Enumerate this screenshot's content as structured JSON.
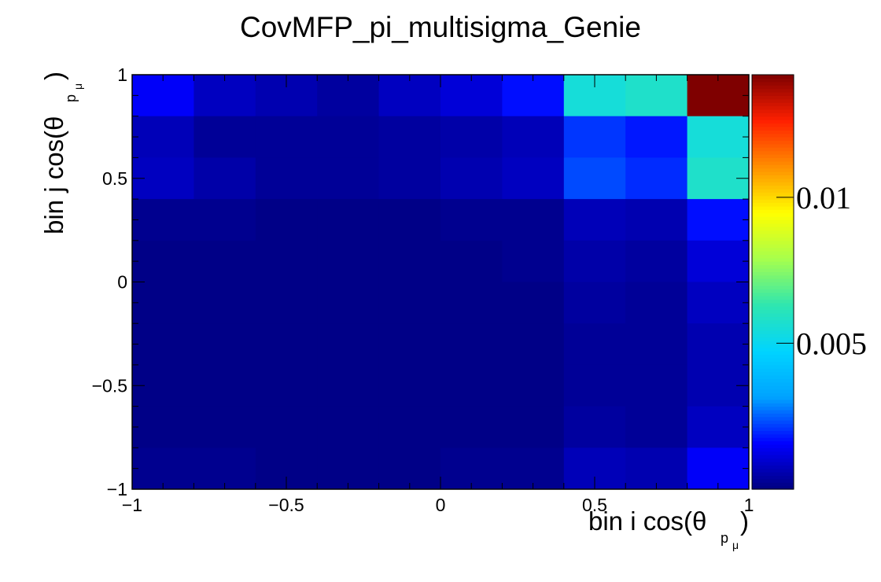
{
  "chart_data": {
    "type": "heatmap",
    "title": "CovMFP_pi_multisigma_Genie",
    "xlabel": {
      "main": "bin i cos(θ",
      "sub_p": "p",
      "sub_mu": "μ",
      "close": ")"
    },
    "ylabel": {
      "main": "bin j cos(θ",
      "sub_p": "p",
      "sub_mu": "μ",
      "close": ")"
    },
    "xlim": [
      -1,
      1
    ],
    "ylim": [
      -1,
      1
    ],
    "zlim": [
      0,
      0.0142
    ],
    "x_edges": [
      -1,
      -0.8,
      -0.6,
      -0.4,
      -0.2,
      0,
      0.2,
      0.4,
      0.6,
      0.8,
      1
    ],
    "y_edges": [
      -1,
      -0.8,
      -0.6,
      -0.4,
      -0.2,
      0,
      0.2,
      0.4,
      0.6,
      0.8,
      1
    ],
    "x_ticks": [
      {
        "v": -1,
        "label": "−1"
      },
      {
        "v": -0.5,
        "label": "−0.5"
      },
      {
        "v": 0,
        "label": "0"
      },
      {
        "v": 0.5,
        "label": "0.5"
      },
      {
        "v": 1,
        "label": "1"
      }
    ],
    "y_ticks": [
      {
        "v": -1,
        "label": "−1"
      },
      {
        "v": -0.5,
        "label": "−0.5"
      },
      {
        "v": 0,
        "label": "0"
      },
      {
        "v": 0.5,
        "label": "0.5"
      },
      {
        "v": 1,
        "label": "1"
      }
    ],
    "z_ticks": [
      {
        "v": 0.005,
        "label": "0.005"
      },
      {
        "v": 0.01,
        "label": "0.01"
      }
    ],
    "colormap": [
      "#00007f",
      "#0000ff",
      "#00a2ff",
      "#00d4ff",
      "#2ee6b0",
      "#a6ff4d",
      "#ffff00",
      "#ff9000",
      "#ff2000",
      "#7f0000"
    ],
    "values_rows_top_to_bottom": [
      [
        0.0015,
        0.0008,
        0.0006,
        0.0004,
        0.0008,
        0.0011,
        0.0017,
        0.0055,
        0.0058,
        0.0142
      ],
      [
        0.0007,
        0.0003,
        0.0003,
        0.0003,
        0.0004,
        0.0005,
        0.0007,
        0.0021,
        0.0018,
        0.0055
      ],
      [
        0.0008,
        0.0005,
        0.0003,
        0.0003,
        0.0004,
        0.0006,
        0.0008,
        0.0023,
        0.002,
        0.0058
      ],
      [
        0.0002,
        0.0002,
        0.0001,
        0.0001,
        0.0001,
        0.0002,
        0.0002,
        0.0007,
        0.0006,
        0.0017
      ],
      [
        0.0001,
        0.0001,
        0.0001,
        0.0001,
        0.0001,
        0.0001,
        0.0002,
        0.0005,
        0.0004,
        0.0011
      ],
      [
        0.0001,
        0.0001,
        0.0001,
        0.0001,
        0.0001,
        0.0001,
        0.0001,
        0.0004,
        0.0003,
        0.0008
      ],
      [
        0.0001,
        0.0001,
        0.0001,
        0.0001,
        0.0001,
        0.0001,
        0.0001,
        0.0003,
        0.0003,
        0.0006
      ],
      [
        0.0001,
        0.0001,
        0.0001,
        0.0001,
        0.0001,
        0.0001,
        0.0001,
        0.0003,
        0.0003,
        0.0006
      ],
      [
        0.0001,
        0.0001,
        0.0001,
        0.0001,
        0.0001,
        0.0001,
        0.0001,
        0.0004,
        0.0003,
        0.0008
      ],
      [
        0.0002,
        0.0002,
        0.0001,
        0.0001,
        0.0001,
        0.0002,
        0.0002,
        0.0007,
        0.0006,
        0.0015
      ]
    ]
  }
}
